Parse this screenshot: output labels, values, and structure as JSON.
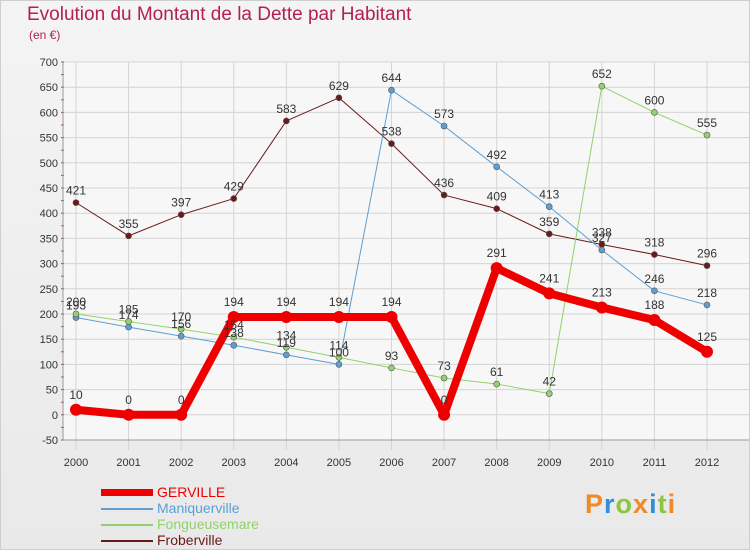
{
  "chart_data": {
    "type": "line",
    "title": "Evolution du Montant de la Dette par Habitant",
    "subtitle": "(en €)",
    "x": [
      "2000",
      "2001",
      "2002",
      "2003",
      "2004",
      "2005",
      "2006",
      "2007",
      "2008",
      "2009",
      "2010",
      "2011",
      "2012"
    ],
    "ylim": [
      -50,
      700
    ],
    "yticks": [
      -50,
      0,
      50,
      100,
      150,
      200,
      250,
      300,
      350,
      400,
      450,
      500,
      550,
      600,
      650,
      700
    ],
    "grid": true,
    "legend_position": "bottom-left",
    "series": [
      {
        "name": "Froberville",
        "color": "#6b1a1a",
        "width": 1,
        "values": [
          421,
          355,
          397,
          429,
          583,
          629,
          538,
          436,
          409,
          359,
          338,
          318,
          296
        ]
      },
      {
        "name": "Maniquerville",
        "color": "#5b9fd4",
        "width": 1,
        "values": [
          193,
          174,
          156,
          138,
          119,
          100,
          644,
          573,
          492,
          413,
          327,
          246,
          218
        ]
      },
      {
        "name": "Fongueusemare",
        "color": "#92d16b",
        "width": 1,
        "values": [
          200,
          185,
          170,
          154,
          134,
          114,
          93,
          73,
          61,
          42,
          652,
          600,
          555
        ]
      },
      {
        "name": "GERVILLE",
        "color": "#ee0000",
        "width": 8,
        "values": [
          10,
          0,
          0,
          194,
          194,
          194,
          194,
          0,
          291,
          241,
          213,
          188,
          125
        ]
      }
    ]
  },
  "legend": {
    "items": [
      {
        "label": "GERVILLE",
        "color": "#ee0000"
      },
      {
        "label": "Maniquerville",
        "color": "#5b9fd4"
      },
      {
        "label": "Fongueusemare",
        "color": "#92d16b"
      },
      {
        "label": "Froberville",
        "color": "#6b1a1a"
      }
    ]
  },
  "logo": {
    "text": "Proxiti",
    "colors": [
      "#f08a24",
      "#2f8fd8",
      "#8cc63f",
      "#f08a24",
      "#2f8fd8",
      "#8cc63f",
      "#f08a24"
    ]
  }
}
